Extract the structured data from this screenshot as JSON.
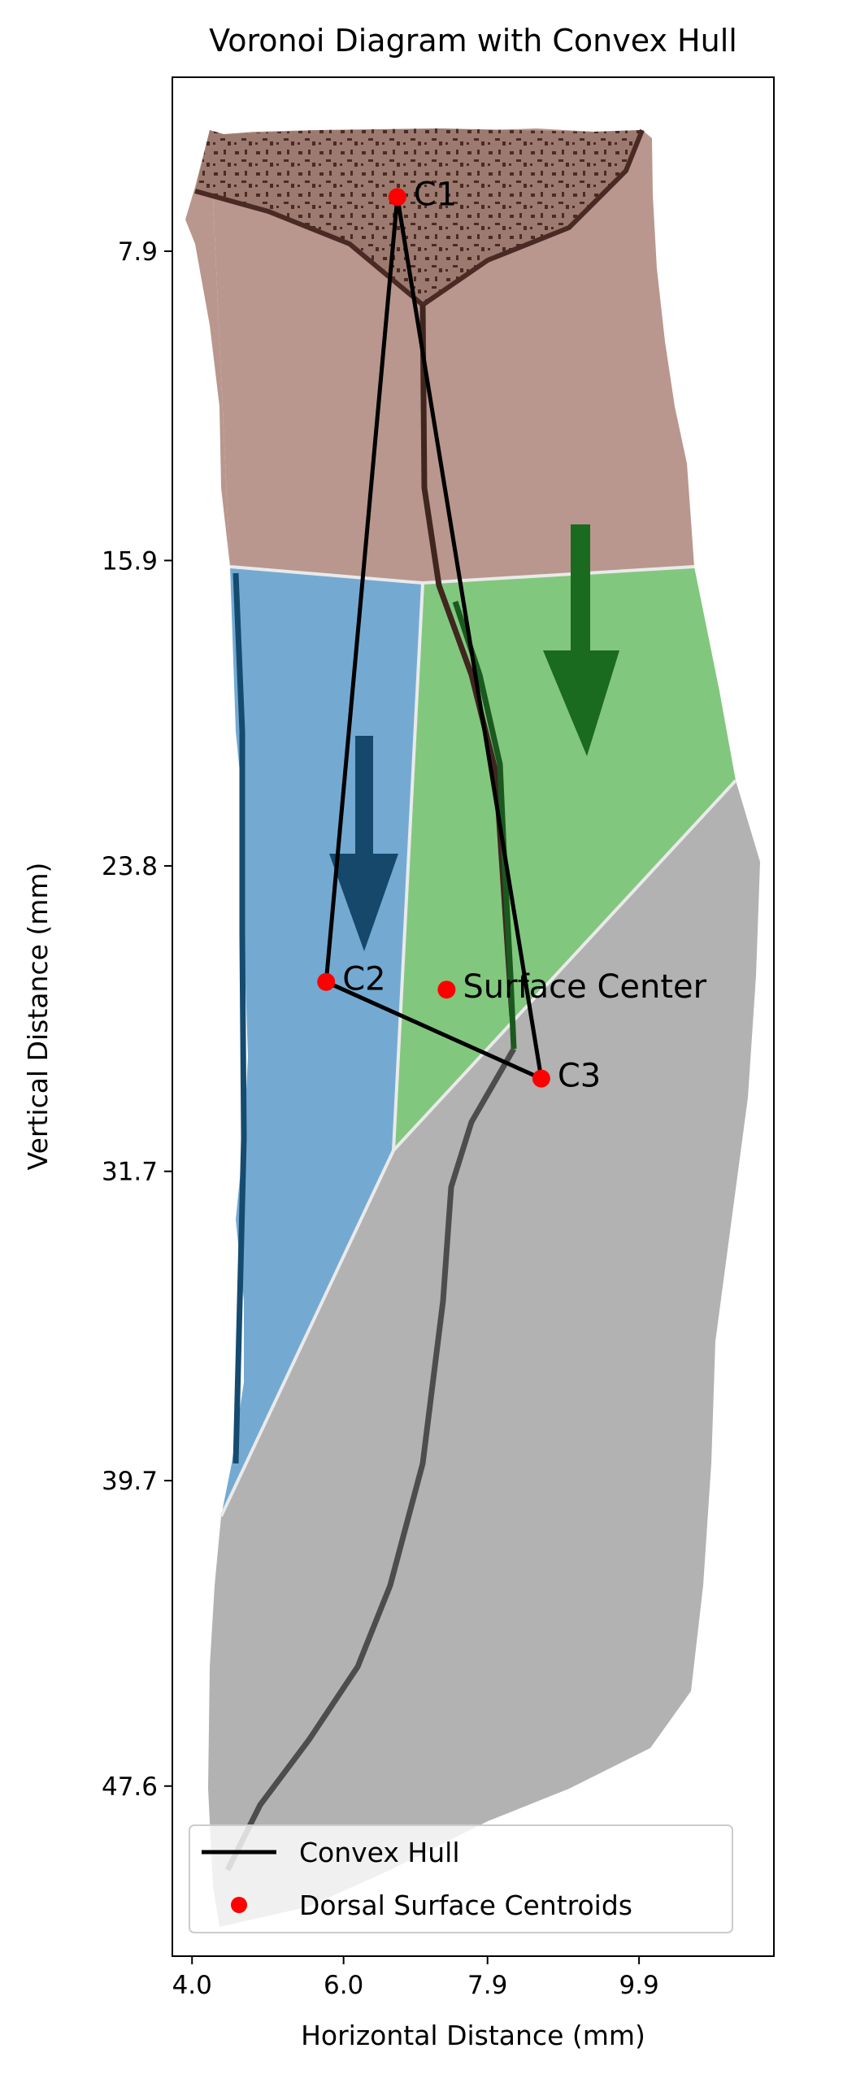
{
  "chart_data": {
    "type": "scatter",
    "title": "Voronoi Diagram with Convex Hull",
    "xlabel": "Horizontal Distance (mm)",
    "ylabel": "Vertical Distance (mm)",
    "x_ticks": [
      "4.0",
      "6.0",
      "7.9",
      "9.9"
    ],
    "y_ticks": [
      "7.9",
      "15.9",
      "23.8",
      "31.7",
      "39.7",
      "47.6"
    ],
    "xlim": [
      3.74,
      11.68
    ],
    "ylim": [
      52.0,
      3.4
    ],
    "y_inverted": true,
    "grid": false,
    "points": [
      {
        "label": "C1",
        "x": 6.71,
        "y": 6.5
      },
      {
        "label": "C2",
        "x": 5.77,
        "y": 26.8
      },
      {
        "label": "C3",
        "x": 8.61,
        "y": 29.3
      },
      {
        "label": "Surface Center",
        "x": 7.36,
        "y": 27.0
      }
    ],
    "convex_hull": {
      "order": [
        "C1",
        "C2",
        "C3"
      ],
      "closed": true
    },
    "regions": [
      {
        "name": "region-c1",
        "color": "#b9978e"
      },
      {
        "name": "region-c2",
        "color": "#74aad2"
      },
      {
        "name": "region-c3-green",
        "color": "#82c77e"
      },
      {
        "name": "region-gray",
        "color": "#b2b2b2"
      }
    ],
    "arrows_color_c2": "#15486b",
    "arrows_color_c3": "#1a6b1f",
    "legend": {
      "placement": "lower-left",
      "entries": [
        {
          "label": "Convex Hull",
          "marker": "line",
          "color": "#000000"
        },
        {
          "label": "Dorsal Surface Centroids",
          "marker": "dot",
          "color": "#ff0000"
        }
      ]
    }
  }
}
